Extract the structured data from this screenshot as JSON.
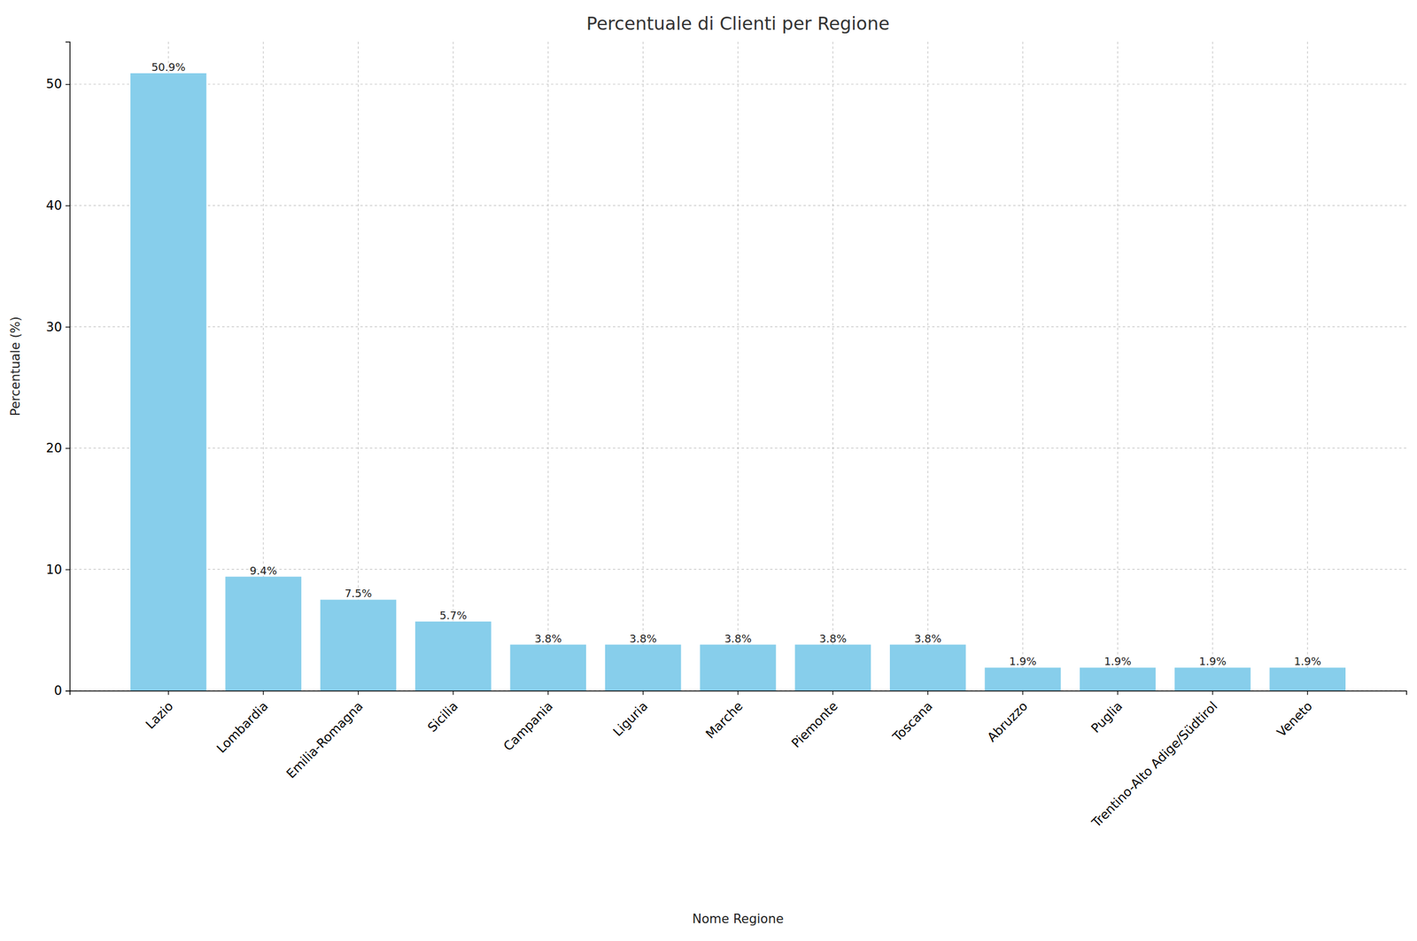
{
  "chart_data": {
    "type": "bar",
    "title": "Percentuale di Clienti per Regione",
    "x_label": "Nome Regione",
    "y_label": "Percentuale (%)",
    "categories": [
      "Lazio",
      "Lombardia",
      "Emilia-Romagna",
      "Sicilia",
      "Campania",
      "Liguria",
      "Marche",
      "Piemonte",
      "Toscana",
      "Abruzzo",
      "Puglia",
      "Trentino-Alto Adige/Südtirol",
      "Veneto"
    ],
    "values": [
      50.9,
      9.4,
      7.5,
      5.7,
      3.8,
      3.8,
      3.8,
      3.8,
      3.8,
      1.9,
      1.9,
      1.9,
      1.9
    ],
    "value_labels": [
      "50.9%",
      "9.4%",
      "7.5%",
      "5.7%",
      "3.8%",
      "3.8%",
      "3.8%",
      "3.8%",
      "3.8%",
      "1.9%",
      "1.9%",
      "1.9%",
      "1.9%"
    ],
    "color": "#87ceeb",
    "ylim": [
      0,
      53.5
    ],
    "yticks": [
      0,
      10,
      20,
      30,
      40,
      50
    ],
    "grid": true,
    "data_labels": true
  }
}
